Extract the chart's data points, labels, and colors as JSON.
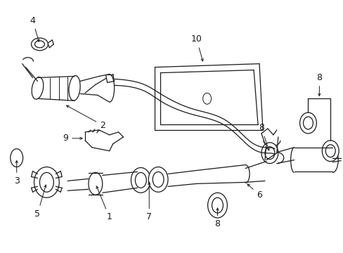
{
  "background_color": "#ffffff",
  "line_color": "#1a1a1a",
  "line_width": 0.9,
  "annotation_fontsize": 9,
  "fig_width": 4.89,
  "fig_height": 3.6,
  "dpi": 100
}
